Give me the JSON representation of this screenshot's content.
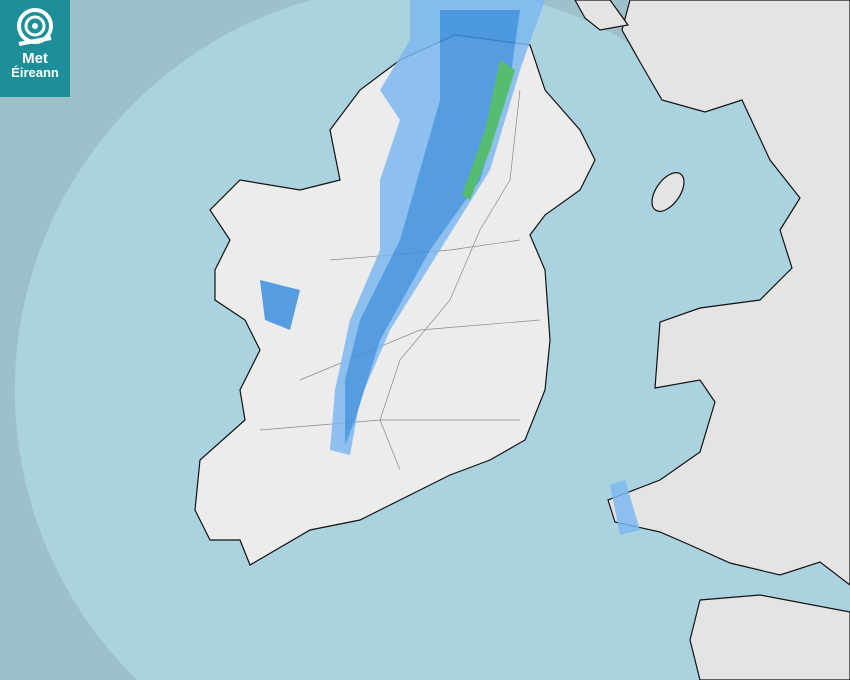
{
  "logo": {
    "line1": "Met",
    "line2": "Éireann"
  },
  "map": {
    "type": "precipitation-radar",
    "colors": {
      "sea": "#aad3df",
      "outside_coverage": "#9dc0ca",
      "land": "#e9e9e9",
      "rain_light": "#7db8f0",
      "rain_moderate": "#3c8fe0",
      "rain_heavy": "#3cb45a",
      "logo_bg": "#1e8f98"
    }
  }
}
